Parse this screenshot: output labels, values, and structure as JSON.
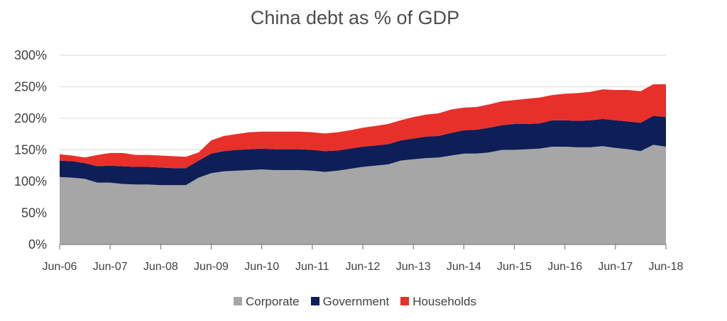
{
  "chart_data": {
    "type": "area",
    "stacked": true,
    "title": "China debt as % of GDP",
    "xlabel": "",
    "ylabel": "",
    "ylim": [
      0,
      300
    ],
    "y_ticks": [
      "0%",
      "50%",
      "100%",
      "150%",
      "200%",
      "250%",
      "300%"
    ],
    "x_tick_labels": [
      "Jun-06",
      "Jun-07",
      "Jun-08",
      "Jun-09",
      "Jun-10",
      "Jun-11",
      "Jun-12",
      "Jun-13",
      "Jun-14",
      "Jun-15",
      "Jun-16",
      "Jun-17",
      "Jun-18"
    ],
    "grid": "horizontal",
    "legend_position": "bottom",
    "x": [
      "Jun-06",
      "Sep-06",
      "Dec-06",
      "Mar-07",
      "Jun-07",
      "Sep-07",
      "Dec-07",
      "Mar-08",
      "Jun-08",
      "Sep-08",
      "Dec-08",
      "Mar-09",
      "Jun-09",
      "Sep-09",
      "Dec-09",
      "Mar-10",
      "Jun-10",
      "Sep-10",
      "Dec-10",
      "Mar-11",
      "Jun-11",
      "Sep-11",
      "Dec-11",
      "Mar-12",
      "Jun-12",
      "Sep-12",
      "Dec-12",
      "Mar-13",
      "Jun-13",
      "Sep-13",
      "Dec-13",
      "Mar-14",
      "Jun-14",
      "Sep-14",
      "Dec-14",
      "Mar-15",
      "Jun-15",
      "Sep-15",
      "Dec-15",
      "Mar-16",
      "Jun-16",
      "Sep-16",
      "Dec-16",
      "Mar-17",
      "Jun-17",
      "Sep-17",
      "Dec-17",
      "Mar-18",
      "Jun-18"
    ],
    "series": [
      {
        "name": "Corporate",
        "color": "#a6a6a6",
        "values": [
          107,
          106,
          104,
          98,
          98,
          96,
          95,
          95,
          94,
          94,
          94,
          106,
          113,
          116,
          117,
          118,
          119,
          118,
          118,
          118,
          117,
          115,
          117,
          120,
          123,
          125,
          127,
          133,
          135,
          137,
          138,
          141,
          144,
          144,
          146,
          150,
          150,
          151,
          152,
          155,
          155,
          154,
          154,
          156,
          153,
          151,
          148,
          158,
          155
        ]
      },
      {
        "name": "Government",
        "color": "#0e1e57",
        "values": [
          26,
          26,
          25,
          26,
          27,
          28,
          28,
          28,
          28,
          27,
          27,
          27,
          31,
          32,
          33,
          33,
          33,
          33,
          33,
          33,
          33,
          33,
          32,
          32,
          32,
          32,
          32,
          32,
          33,
          34,
          34,
          36,
          37,
          38,
          39,
          39,
          41,
          40,
          40,
          42,
          42,
          42,
          43,
          43,
          44,
          44,
          45,
          46,
          47
        ]
      },
      {
        "name": "Households",
        "color": "#e8302a",
        "values": [
          10,
          9,
          9,
          18,
          20,
          21,
          19,
          19,
          19,
          19,
          18,
          13,
          21,
          24,
          25,
          27,
          27,
          28,
          28,
          28,
          28,
          28,
          29,
          29,
          30,
          31,
          32,
          32,
          34,
          35,
          36,
          37,
          36,
          36,
          37,
          38,
          38,
          40,
          41,
          40,
          42,
          44,
          45,
          47,
          48,
          50,
          50,
          50,
          52
        ]
      }
    ]
  }
}
